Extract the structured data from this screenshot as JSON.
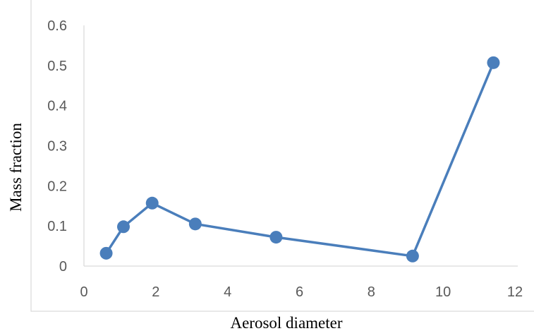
{
  "chart_data": {
    "type": "line",
    "title": "",
    "xlabel": "Aerosol diameter",
    "ylabel": "Mass fraction",
    "xlim": [
      0,
      12
    ],
    "ylim": [
      0,
      0.6
    ],
    "x_ticks": [
      "0",
      "2",
      "4",
      "6",
      "8",
      "10",
      "12"
    ],
    "y_ticks": [
      "0",
      "0.1",
      "0.2",
      "0.3",
      "0.4",
      "0.5",
      "0.6"
    ],
    "grid": false,
    "legend": "none",
    "series": [
      {
        "color": "#4a7ebb",
        "points": [
          {
            "x": 0.62,
            "y": 0.032
          },
          {
            "x": 1.1,
            "y": 0.098
          },
          {
            "x": 1.9,
            "y": 0.157
          },
          {
            "x": 3.1,
            "y": 0.105
          },
          {
            "x": 5.35,
            "y": 0.072
          },
          {
            "x": 9.15,
            "y": 0.025
          },
          {
            "x": 11.4,
            "y": 0.507
          }
        ]
      }
    ]
  }
}
